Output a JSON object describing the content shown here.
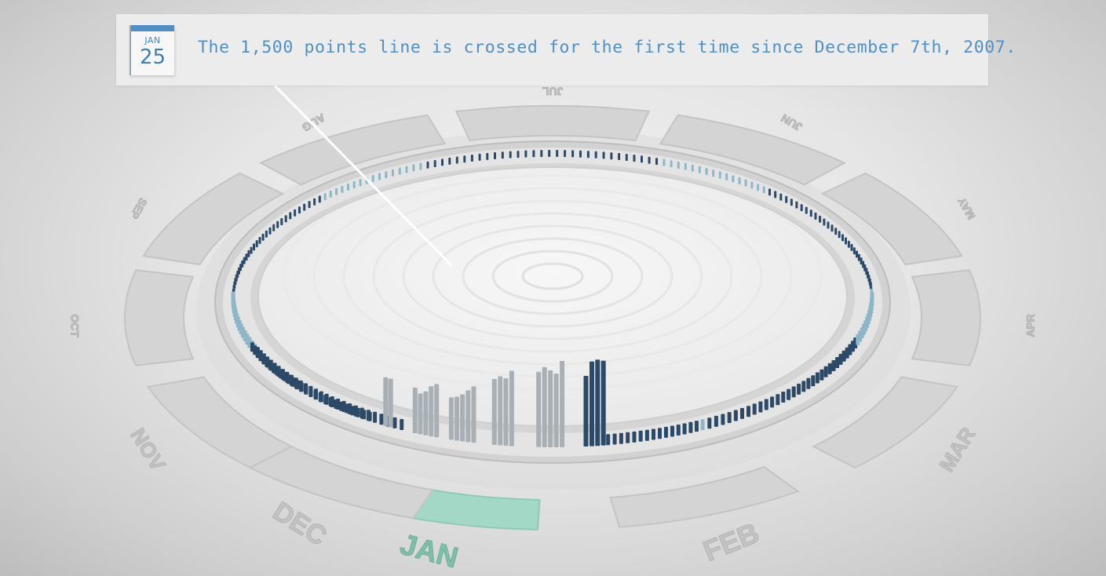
{
  "callout": {
    "date_month": "JAN",
    "date_day": "25",
    "message": "The 1,500 points line is crossed for the first time since December 7th, 2007."
  },
  "calendar_ring": {
    "highlighted_month": "JAN",
    "months": [
      "JAN",
      "FEB",
      "MAR",
      "APR",
      "MAY",
      "JUN",
      "JUL",
      "AUG",
      "SEP",
      "OCT",
      "NOV",
      "DEC"
    ]
  },
  "colors": {
    "accent": "#4f8fc4",
    "highlight": "#a3d8c6",
    "bar_dark": "#2c4a68",
    "bar_light": "#8fb6c8",
    "bar_gray": "#a9b0b5"
  }
}
